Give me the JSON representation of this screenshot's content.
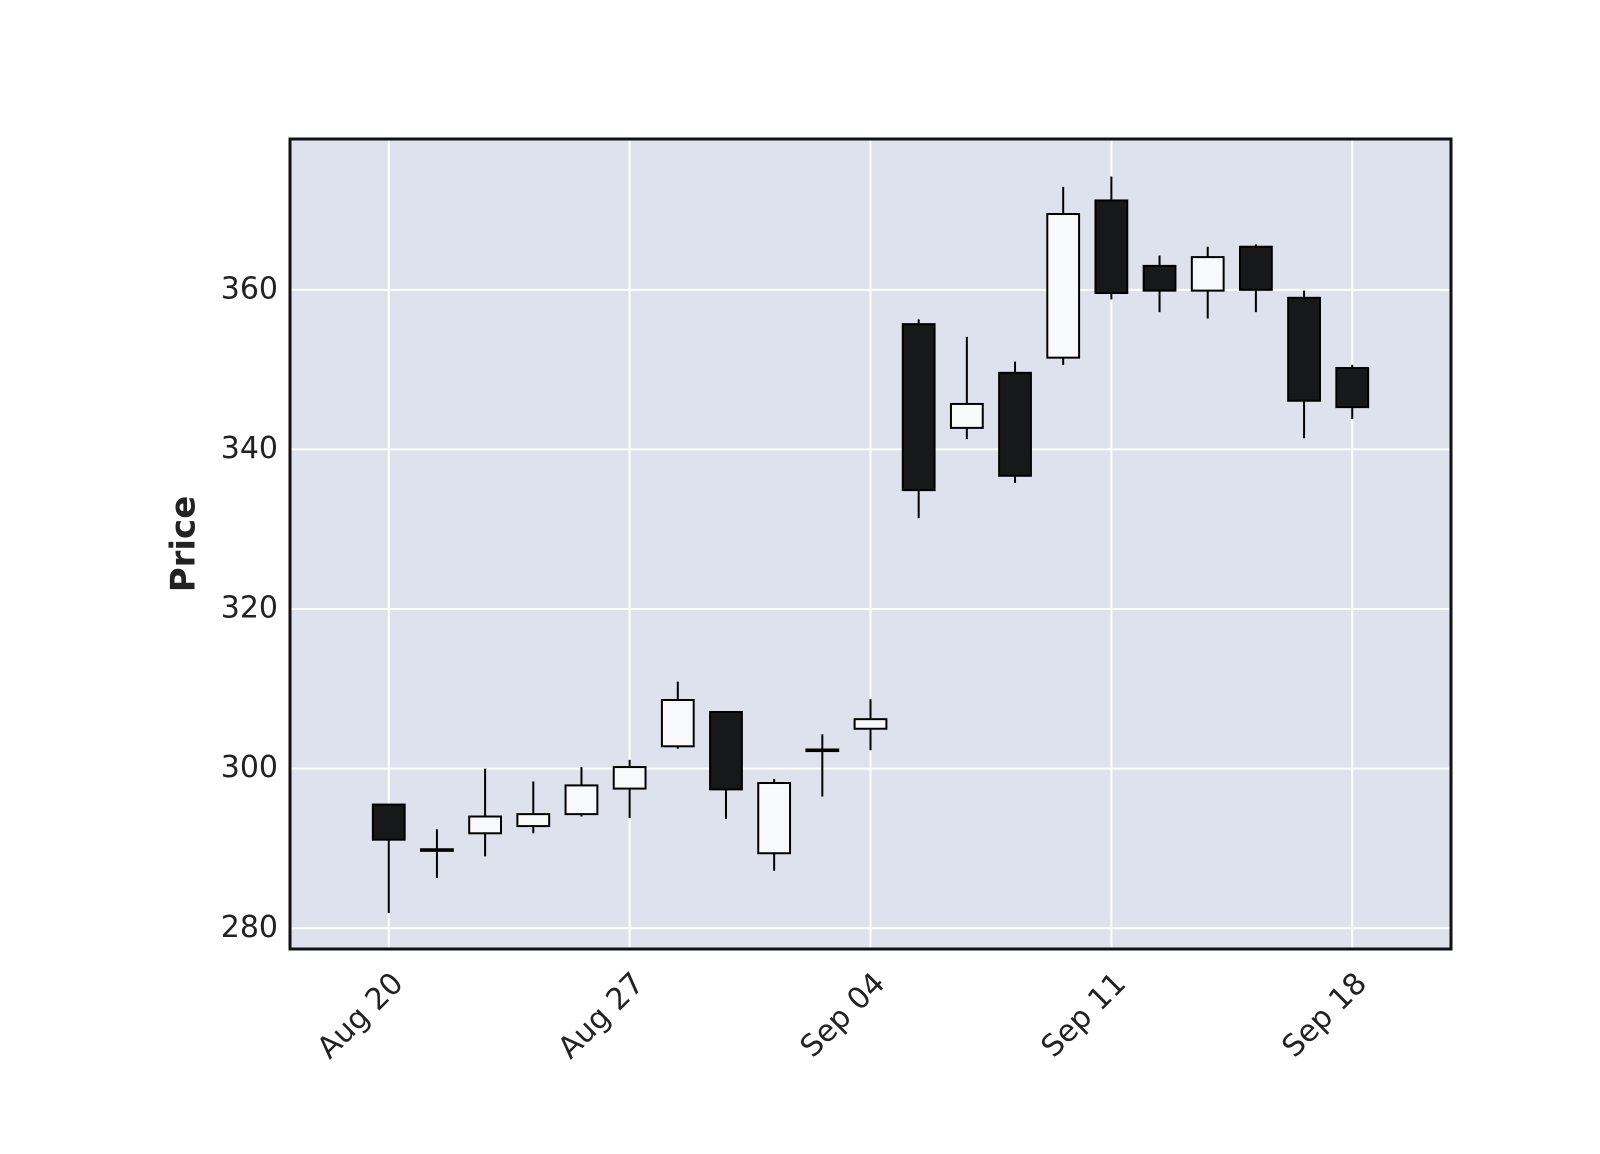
{
  "chart_data": {
    "type": "candlestick",
    "ylabel": "Price",
    "categories": [
      "Aug 20",
      null,
      null,
      null,
      null,
      "Aug 27",
      null,
      null,
      null,
      null,
      "Sep 04",
      null,
      null,
      null,
      null,
      "Sep 11",
      null,
      null,
      null,
      null,
      "Sep 18"
    ],
    "open": [
      295.5,
      289.9,
      291.9,
      292.8,
      294.3,
      297.5,
      302.8,
      307.1,
      289.4,
      302.2,
      305.0,
      355.7,
      342.7,
      349.6,
      351.5,
      371.2,
      363.0,
      359.9,
      365.4,
      359.0,
      350.2
    ],
    "high": [
      295.5,
      292.4,
      300.0,
      298.4,
      300.2,
      301.1,
      310.9,
      307.1,
      298.7,
      304.3,
      308.7,
      356.3,
      354.1,
      351.0,
      372.9,
      374.2,
      364.3,
      365.4,
      365.7,
      359.9,
      350.6
    ],
    "low": [
      281.9,
      286.3,
      289.0,
      291.9,
      294.0,
      293.8,
      302.5,
      293.7,
      287.2,
      296.5,
      302.3,
      331.4,
      341.3,
      335.8,
      350.6,
      358.8,
      357.2,
      356.4,
      357.2,
      341.4,
      343.8
    ],
    "close": [
      291.1,
      289.7,
      294.0,
      294.3,
      297.9,
      300.2,
      308.6,
      297.4,
      298.2,
      302.4,
      306.2,
      334.9,
      345.7,
      336.7,
      369.5,
      359.6,
      359.9,
      364.1,
      360.0,
      346.1,
      345.3
    ],
    "up_color": "#f8f9fb",
    "down_color": "#17181a",
    "background": "#dde2ed",
    "xlim": [
      -2.05,
      22.05
    ],
    "ylim": [
      277.4,
      378.9
    ],
    "yticks": [
      280,
      300,
      320,
      340,
      360
    ],
    "grid": true
  }
}
